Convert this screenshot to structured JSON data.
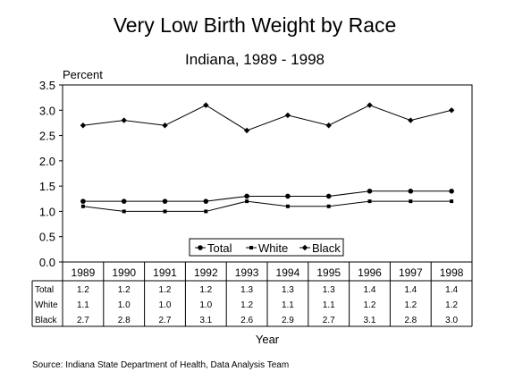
{
  "chart_data": {
    "type": "line",
    "title": "Very Low Birth Weight by Race",
    "subtitle": "Indiana, 1989 - 1998",
    "ylabel": "Percent",
    "xlabel": "Year",
    "ylim": [
      0,
      3.5
    ],
    "yticks": [
      "0.0",
      "0.5",
      "1.0",
      "1.5",
      "2.0",
      "2.5",
      "3.0",
      "3.5"
    ],
    "ytick_values": [
      0,
      0.5,
      1.0,
      1.5,
      2.0,
      2.5,
      3.0,
      3.5
    ],
    "categories": [
      "1989",
      "1990",
      "1991",
      "1992",
      "1993",
      "1994",
      "1995",
      "1996",
      "1997",
      "1998"
    ],
    "series": [
      {
        "name": "Total",
        "marker": "circle",
        "values": [
          1.2,
          1.2,
          1.2,
          1.2,
          1.3,
          1.3,
          1.3,
          1.4,
          1.4,
          1.4
        ],
        "labels": [
          "1.2",
          "1.2",
          "1.2",
          "1.2",
          "1.3",
          "1.3",
          "1.3",
          "1.4",
          "1.4",
          "1.4"
        ]
      },
      {
        "name": "White",
        "marker": "square",
        "values": [
          1.1,
          1.0,
          1.0,
          1.0,
          1.2,
          1.1,
          1.1,
          1.2,
          1.2,
          1.2
        ],
        "labels": [
          "1.1",
          "1.0",
          "1.0",
          "1.0",
          "1.2",
          "1.1",
          "1.1",
          "1.2",
          "1.2",
          "1.2"
        ]
      },
      {
        "name": "Black",
        "marker": "diamond",
        "values": [
          2.7,
          2.8,
          2.7,
          3.1,
          2.6,
          2.9,
          2.7,
          3.1,
          2.8,
          3.0
        ],
        "labels": [
          "2.7",
          "2.8",
          "2.7",
          "3.1",
          "2.6",
          "2.9",
          "2.7",
          "3.1",
          "2.8",
          "3.0"
        ]
      }
    ],
    "grid": false,
    "legend_position": "bottom-center",
    "source": "Source:  Indiana State Department of Health, Data Analysis Team",
    "colors": {
      "line": "#000000",
      "background": "#ffffff"
    }
  }
}
